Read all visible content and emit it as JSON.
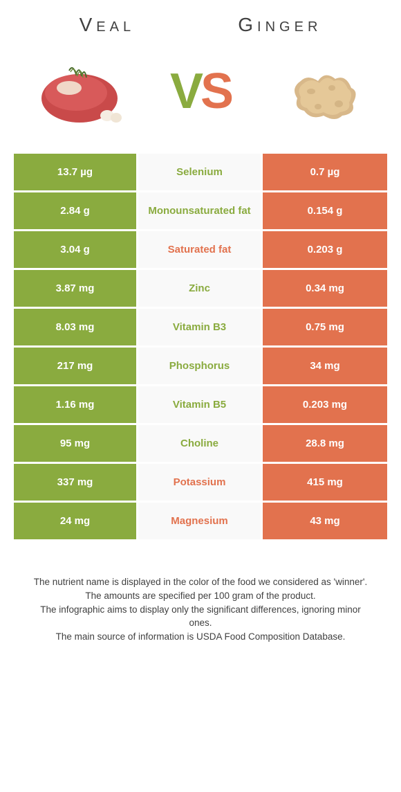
{
  "colors": {
    "left": "#8aab3f",
    "right": "#e2724e",
    "mid_bg": "#f9f9f9",
    "text": "#404040"
  },
  "header": {
    "left_title": "Veal",
    "right_title": "Ginger"
  },
  "vs": {
    "v": "V",
    "s": "S"
  },
  "rows": [
    {
      "left": "13.7 µg",
      "name": "Selenium",
      "right": "0.7 µg",
      "winner": "left"
    },
    {
      "left": "2.84 g",
      "name": "Monounsaturated fat",
      "right": "0.154 g",
      "winner": "left"
    },
    {
      "left": "3.04 g",
      "name": "Saturated fat",
      "right": "0.203 g",
      "winner": "right"
    },
    {
      "left": "3.87 mg",
      "name": "Zinc",
      "right": "0.34 mg",
      "winner": "left"
    },
    {
      "left": "8.03 mg",
      "name": "Vitamin B3",
      "right": "0.75 mg",
      "winner": "left"
    },
    {
      "left": "217 mg",
      "name": "Phosphorus",
      "right": "34 mg",
      "winner": "left"
    },
    {
      "left": "1.16 mg",
      "name": "Vitamin B5",
      "right": "0.203 mg",
      "winner": "left"
    },
    {
      "left": "95 mg",
      "name": "Choline",
      "right": "28.8 mg",
      "winner": "left"
    },
    {
      "left": "337 mg",
      "name": "Potassium",
      "right": "415 mg",
      "winner": "right"
    },
    {
      "left": "24 mg",
      "name": "Magnesium",
      "right": "43 mg",
      "winner": "right"
    }
  ],
  "footer": {
    "l1": "The nutrient name is displayed in the color of the food we considered as 'winner'.",
    "l2": "The amounts are specified per 100 gram of the product.",
    "l3": "The infographic aims to display only the significant differences, ignoring minor ones.",
    "l4": "The main source of information is USDA Food Composition Database."
  }
}
